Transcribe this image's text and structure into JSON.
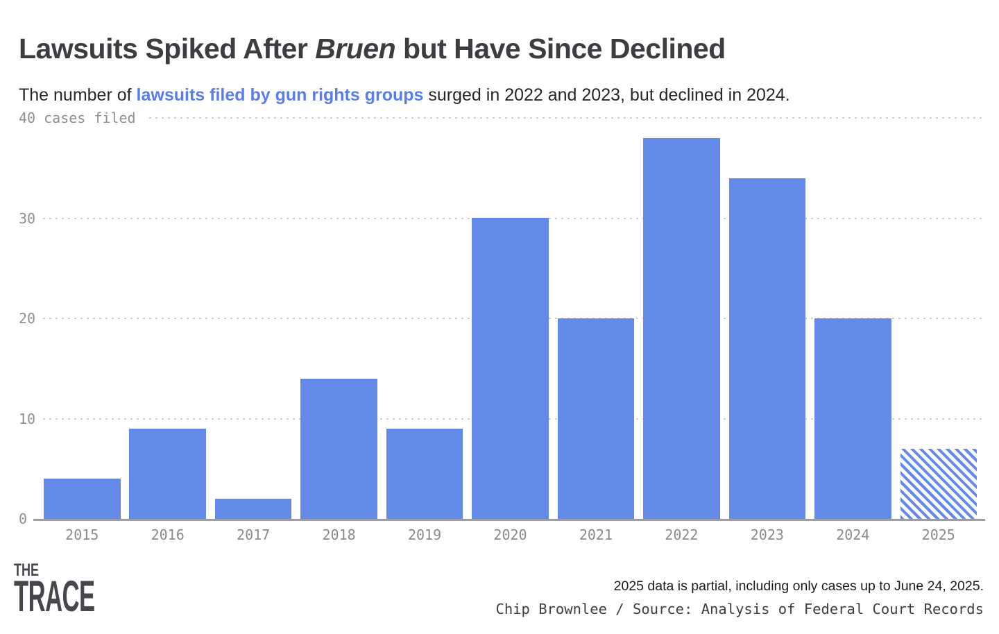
{
  "header": {
    "title_prefix": "Lawsuits Spiked After ",
    "title_emphasis": "Bruen",
    "title_suffix": " but Have Since Declined",
    "subtitle_prefix": "The number of ",
    "subtitle_link": "lawsuits filed by gun rights groups",
    "subtitle_suffix": " surged in 2022 and 2023, but declined in 2024."
  },
  "chart_data": {
    "type": "bar",
    "title": "Lawsuits Spiked After Bruen but Have Since Declined",
    "subtitle": "The number of lawsuits filed by gun rights groups surged in 2022 and 2023, but declined in 2024.",
    "categories": [
      "2015",
      "2016",
      "2017",
      "2018",
      "2019",
      "2020",
      "2021",
      "2022",
      "2023",
      "2024",
      "2025"
    ],
    "values": [
      4,
      9,
      2,
      14,
      9,
      30,
      20,
      38,
      34,
      20,
      7
    ],
    "partial_categories": [
      "2025"
    ],
    "xlabel": "",
    "ylabel": "cases filed",
    "ylim": [
      0,
      40
    ],
    "yticks": [
      0,
      10,
      20,
      30,
      40
    ],
    "ytick_top_label": "40 cases filed",
    "grid": "horizontal dotted",
    "legend": "none"
  },
  "footer": {
    "logo_line1": "THE",
    "logo_line2": "TRACE",
    "note": "2025 data is partial, including only cases up to June 24, 2025.",
    "credit": "Chip Brownlee / Source: Analysis of Federal Court Records"
  },
  "colors": {
    "bar_blue": "#6389e9",
    "link_blue": "#5a7ee9",
    "title_gray": "#3c3c41",
    "axis_label_gray": "#8e8e93",
    "gridline_gray": "#cfcfd2",
    "baseline_gray": "#9c9ca1"
  }
}
